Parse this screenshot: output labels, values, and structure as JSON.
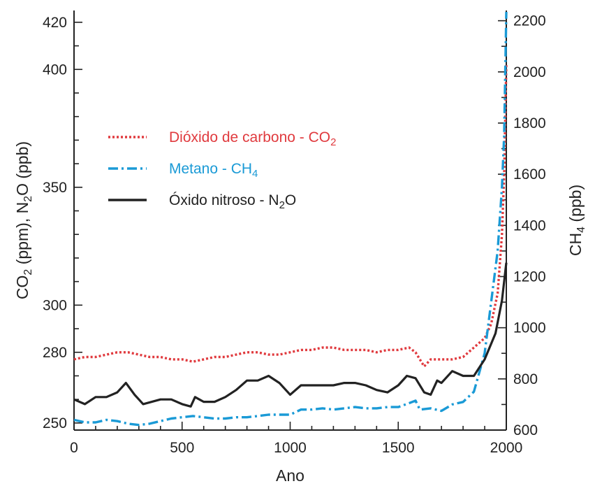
{
  "chart_data": {
    "type": "line",
    "xlabel": "Ano",
    "ylabel_left": {
      "main": "CO",
      "sub1": "2",
      "mid": " (ppm), N",
      "sub2": "2",
      "end": "O (ppb)"
    },
    "ylabel_right": {
      "main": "CH",
      "sub": "4",
      "end": " (ppb)"
    },
    "xlim": [
      0,
      2000
    ],
    "ylim_left": [
      247,
      425
    ],
    "ylim_right": [
      600,
      2240
    ],
    "x_ticks": [
      "0",
      "500",
      "1000",
      "1500",
      "2000"
    ],
    "x_tick_values": [
      0,
      500,
      1000,
      1500,
      2000
    ],
    "left_ticks": [
      "250",
      "280",
      "300",
      "350",
      "400",
      "420"
    ],
    "left_tick_values": [
      250,
      280,
      300,
      350,
      400,
      420
    ],
    "right_ticks": [
      "600",
      "800",
      "1000",
      "1200",
      "1400",
      "1600",
      "1800",
      "2000",
      "2200"
    ],
    "right_tick_values": [
      600,
      800,
      1000,
      1200,
      1400,
      1600,
      1800,
      2000,
      2200
    ],
    "legend_position": "upper-left",
    "series": [
      {
        "name": "Dióxido de carbono - CO",
        "name_sub": "2",
        "axis": "left",
        "color": "#e03a3e",
        "style": "dotted",
        "x": [
          0,
          50,
          100,
          150,
          200,
          250,
          300,
          350,
          400,
          450,
          500,
          550,
          600,
          650,
          700,
          750,
          800,
          850,
          900,
          950,
          1000,
          1050,
          1100,
          1150,
          1200,
          1250,
          1300,
          1350,
          1400,
          1450,
          1500,
          1550,
          1580,
          1620,
          1650,
          1700,
          1750,
          1800,
          1850,
          1900,
          1930,
          1960,
          1980,
          1990,
          2000
        ],
        "y": [
          277,
          278,
          278,
          279,
          280,
          280,
          279,
          278,
          278,
          277,
          277,
          276,
          277,
          278,
          278,
          279,
          280,
          280,
          279,
          279,
          280,
          281,
          281,
          282,
          282,
          281,
          281,
          281,
          280,
          281,
          281,
          282,
          280,
          274,
          277,
          277,
          277,
          278,
          282,
          286,
          292,
          305,
          330,
          355,
          402
        ]
      },
      {
        "name": "Metano - CH",
        "name_sub": "4",
        "axis": "right",
        "color": "#1a9ad6",
        "style": "dashdot",
        "x": [
          0,
          50,
          100,
          150,
          200,
          250,
          300,
          350,
          400,
          450,
          500,
          550,
          600,
          650,
          700,
          750,
          800,
          850,
          900,
          950,
          1000,
          1050,
          1100,
          1150,
          1200,
          1250,
          1300,
          1350,
          1400,
          1450,
          1500,
          1550,
          1580,
          1600,
          1650,
          1700,
          1750,
          1800,
          1850,
          1900,
          1930,
          1960,
          1980,
          1990,
          2000
        ],
        "y": [
          640,
          630,
          630,
          640,
          635,
          625,
          620,
          625,
          635,
          645,
          650,
          655,
          650,
          645,
          645,
          650,
          650,
          655,
          660,
          660,
          660,
          680,
          680,
          685,
          680,
          685,
          690,
          685,
          685,
          690,
          690,
          705,
          715,
          680,
          685,
          675,
          700,
          710,
          750,
          900,
          1100,
          1300,
          1550,
          1750,
          2260
        ]
      },
      {
        "name": "Óxido nitroso - N",
        "name_sub": "2",
        "name_end": "O",
        "axis": "left",
        "color": "#222222",
        "style": "solid",
        "x": [
          0,
          50,
          100,
          150,
          200,
          240,
          280,
          320,
          360,
          400,
          450,
          500,
          540,
          560,
          600,
          650,
          700,
          750,
          800,
          850,
          900,
          950,
          1000,
          1050,
          1100,
          1150,
          1200,
          1250,
          1300,
          1350,
          1400,
          1450,
          1500,
          1540,
          1580,
          1620,
          1650,
          1680,
          1700,
          1750,
          1800,
          1850,
          1900,
          1950,
          1980,
          2000
        ],
        "y": [
          260,
          258,
          261,
          261,
          263,
          267,
          262,
          258,
          259,
          260,
          260,
          258,
          257,
          261,
          259,
          259,
          261,
          264,
          268,
          268,
          270,
          267,
          262,
          266,
          266,
          266,
          266,
          267,
          267,
          266,
          264,
          263,
          266,
          270,
          269,
          263,
          262,
          268,
          267,
          272,
          270,
          270,
          277,
          288,
          302,
          318
        ]
      }
    ]
  }
}
